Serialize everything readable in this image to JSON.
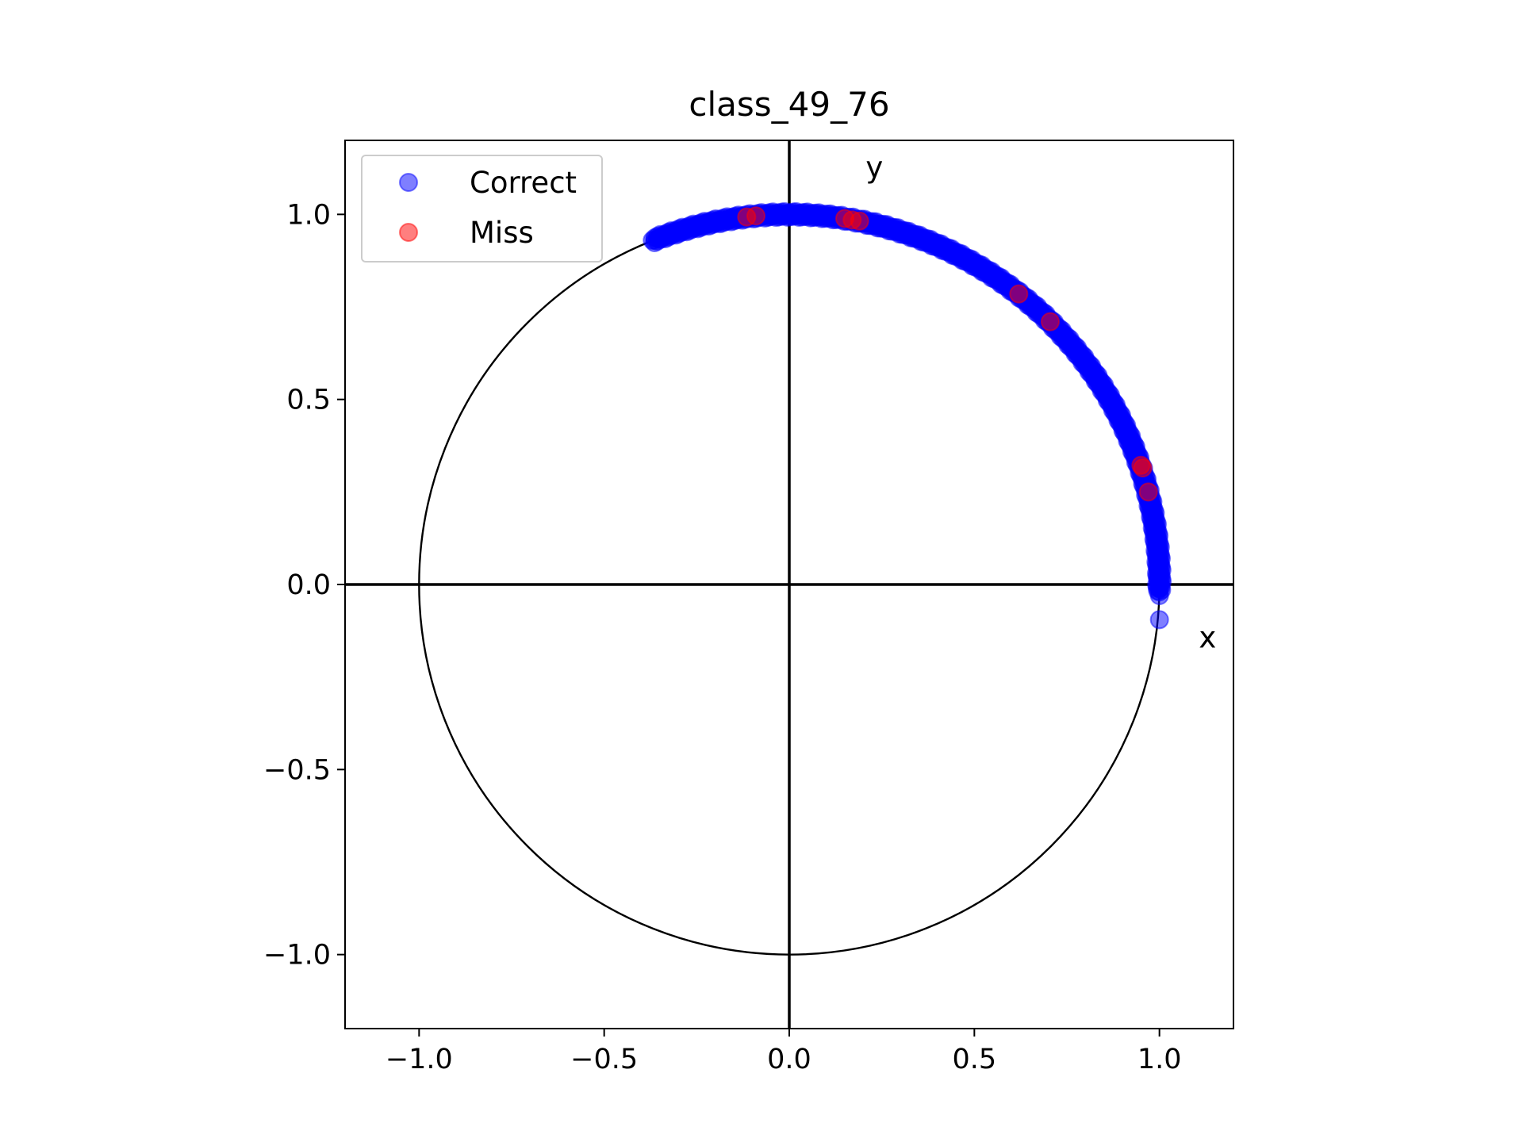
{
  "chart_data": {
    "type": "scatter",
    "title": "class_49_76",
    "xlabel": "",
    "ylabel": "",
    "xlim": [
      -1.2,
      1.2
    ],
    "ylim": [
      -1.2,
      1.2
    ],
    "x_ticks": [
      -1.0,
      -0.5,
      0.0,
      0.5,
      1.0
    ],
    "y_ticks": [
      -1.0,
      -0.5,
      0.0,
      0.5,
      1.0
    ],
    "x_tick_labels": [
      "−1.0",
      "−0.5",
      "0.0",
      "0.5",
      "1.0"
    ],
    "y_tick_labels": [
      "−1.0",
      "−0.5",
      "0.0",
      "0.5",
      "1.0"
    ],
    "grid": false,
    "legend_position": "top-left",
    "unit_circle": {
      "center": [
        0,
        0
      ],
      "radius": 1.0
    },
    "axis_lines": {
      "x": 0,
      "y": 0
    },
    "annotations": [
      {
        "text": "y",
        "x": 0.23,
        "y": 1.1
      },
      {
        "text": "x",
        "x": 1.13,
        "y": -0.17
      }
    ],
    "series": [
      {
        "name": "Correct",
        "color": "#0000ff",
        "alpha": 0.5,
        "marker": "circle",
        "arc": {
          "from_deg": 111.5,
          "to_deg": -1,
          "count": 700
        },
        "points": [
          [
            -0.37,
            0.93
          ],
          [
            -0.35,
            0.936
          ],
          [
            -0.33,
            0.944
          ],
          [
            -0.3,
            0.954
          ],
          [
            -0.28,
            0.96
          ],
          [
            -0.25,
            0.968
          ],
          [
            -0.22,
            0.975
          ],
          [
            -0.2,
            0.98
          ],
          [
            0.74,
            0.675
          ],
          [
            0.7,
            0.714
          ],
          [
            0.66,
            0.75
          ],
          [
            0.64,
            0.768
          ],
          [
            0.62,
            0.784
          ],
          [
            1.0,
            0.02
          ],
          [
            1.0,
            -0.01
          ],
          [
            1.0,
            -0.03
          ],
          [
            1.0,
            -0.02
          ],
          [
            1.0,
            -0.095
          ]
        ]
      },
      {
        "name": "Miss",
        "color": "#ff0000",
        "alpha": 0.5,
        "marker": "circle",
        "points": [
          [
            -0.115,
            0.993
          ],
          [
            -0.09,
            0.996
          ],
          [
            0.15,
            0.989
          ],
          [
            0.17,
            0.985
          ],
          [
            0.19,
            0.982
          ],
          [
            0.62,
            0.785
          ],
          [
            0.705,
            0.71
          ],
          [
            0.95,
            0.322
          ],
          [
            0.955,
            0.315
          ],
          [
            0.97,
            0.25
          ]
        ]
      }
    ]
  }
}
